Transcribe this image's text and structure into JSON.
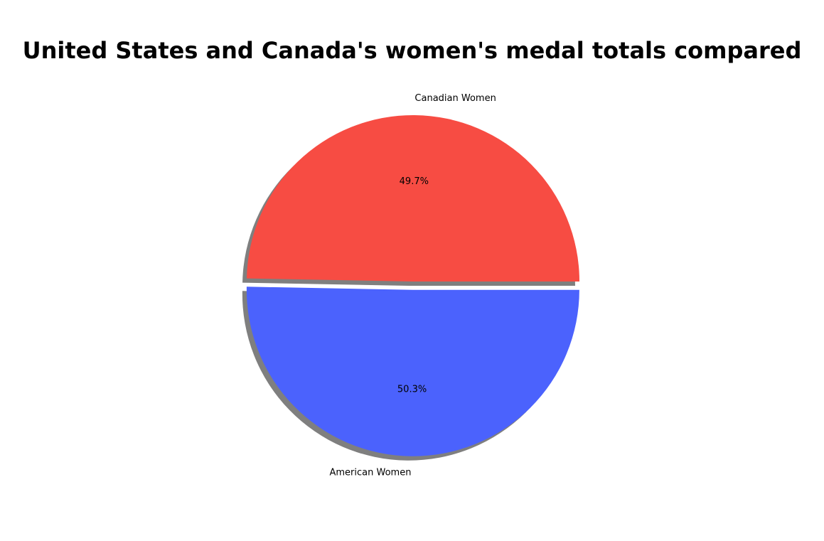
{
  "chart_data": {
    "type": "pie",
    "title": "United States and Canada's women's medal totals compared",
    "slices": [
      {
        "label": "Canadian Women",
        "percent": 49.7,
        "percent_label": "49.7%",
        "color": "#f74c43",
        "exploded": false
      },
      {
        "label": "American Women",
        "percent": 50.3,
        "percent_label": "50.3%",
        "color": "#4b62fd",
        "exploded": true
      }
    ],
    "shadow": true,
    "start_angle_deg": 0,
    "direction": "counterclockwise"
  }
}
